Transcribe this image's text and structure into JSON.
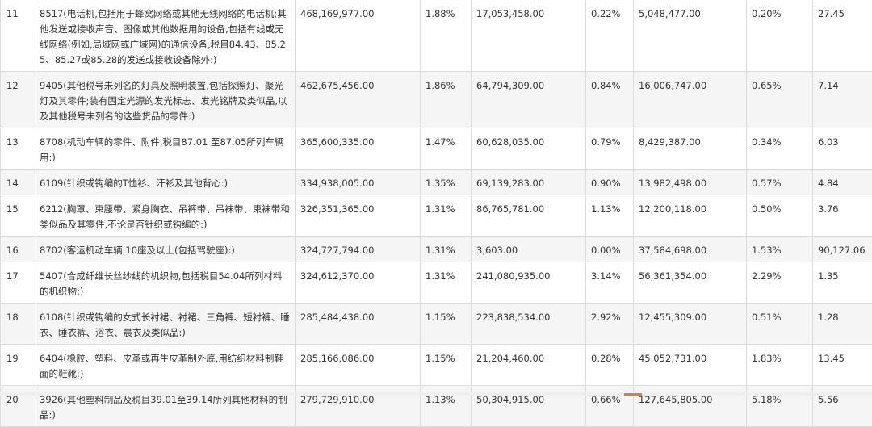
{
  "rows": [
    {
      "idx": "11",
      "name": "8517(电话机,包括用于蜂窝网络或其他无线网络的电话机;其他发送或接收声音、图像或其他数据用的设备,包括有线或无线网络(例如,局域网或广域网)的通信设备,税目84.43、85.25、85.27或85.28的发送或接收设备除外:)",
      "v1": "468,169,977.00",
      "p1": "1.88%",
      "v2": "17,053,458.00",
      "p2": "0.22%",
      "v3": "5,048,477.00",
      "p3": "0.20%",
      "r": "27.45"
    },
    {
      "idx": "12",
      "name": "9405(其他税号未列名的灯具及照明装置,包括探照灯、聚光灯及其零件;装有固定光源的发光标志、发光铭牌及类似品,以及其他税号未列名的这些货品的零件:)",
      "v1": "462,675,456.00",
      "p1": "1.86%",
      "v2": "64,794,309.00",
      "p2": "0.84%",
      "v3": "16,006,747.00",
      "p3": "0.65%",
      "r": "7.14"
    },
    {
      "idx": "13",
      "name": "8708(机动车辆的零件、附件,税目87.01 至87.05所列车辆用:)",
      "v1": "365,600,335.00",
      "p1": "1.47%",
      "v2": "60,628,035.00",
      "p2": "0.79%",
      "v3": "8,429,387.00",
      "p3": "0.34%",
      "r": "6.03"
    },
    {
      "idx": "14",
      "name": "6109(针织或钩编的T恤衫、汗衫及其他背心:)",
      "v1": "334,938,005.00",
      "p1": "1.35%",
      "v2": "69,139,283.00",
      "p2": "0.90%",
      "v3": "13,982,498.00",
      "p3": "0.57%",
      "r": "4.84"
    },
    {
      "idx": "15",
      "name": "6212(胸罩、束腰带、紧身胸衣、吊裤带、吊袜带、束袜带和类似品及其零件,不论是否针织或钩编的:)",
      "v1": "326,351,365.00",
      "p1": "1.31%",
      "v2": "86,765,781.00",
      "p2": "1.13%",
      "v3": "12,200,118.00",
      "p3": "0.50%",
      "r": "3.76"
    },
    {
      "idx": "16",
      "name": "8702(客运机动车辆,10座及以上(包括驾驶座):)",
      "v1": "324,727,794.00",
      "p1": "1.31%",
      "v2": "3,603.00",
      "p2": "0.00%",
      "v3": "37,584,698.00",
      "p3": "1.53%",
      "r": "90,127.06"
    },
    {
      "idx": "17",
      "name": "5407(合成纤维长丝纱线的机织物,包括税目54.04所列材料的机织物:)",
      "v1": "324,612,370.00",
      "p1": "1.31%",
      "v2": "241,080,935.00",
      "p2": "3.14%",
      "v3": "56,361,354.00",
      "p3": "2.29%",
      "r": "1.35"
    },
    {
      "idx": "18",
      "name": "6108(针织或钩编的女式长衬裙、衬裙、三角裤、短衬裤、睡衣、睡衣裤、浴衣、晨衣及类似品:)",
      "v1": "285,484,438.00",
      "p1": "1.15%",
      "v2": "223,838,534.00",
      "p2": "2.92%",
      "v3": "12,455,309.00",
      "p3": "0.51%",
      "r": "1.28"
    },
    {
      "idx": "19",
      "name": "6404(橡胶、塑料、皮革或再生皮革制外底,用纺织材料制鞋面的鞋靴:)",
      "v1": "285,166,086.00",
      "p1": "1.15%",
      "v2": "21,204,460.00",
      "p2": "0.28%",
      "v3": "45,052,731.00",
      "p3": "1.83%",
      "r": "13.45"
    },
    {
      "idx": "20",
      "name": "3926(其他塑料制品及税目39.01至39.14所列其他材料的制品:)",
      "v1": "279,729,910.00",
      "p1": "1.13%",
      "v2": "50,304,915.00",
      "p2": "0.66%",
      "v3": "127,645,805.00",
      "p3": "5.18%",
      "r": "5.56"
    }
  ]
}
